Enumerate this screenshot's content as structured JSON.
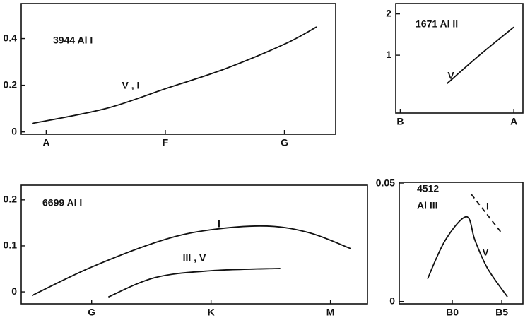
{
  "chart_data": [
    {
      "type": "line",
      "title": [
        "3944 Al I"
      ],
      "xlim": [
        -0.21,
        2.43
      ],
      "xticks": [
        {
          "value": 0,
          "label": "A"
        },
        {
          "value": 1,
          "label": "F"
        },
        {
          "value": 2,
          "label": "G"
        }
      ],
      "ylim": [
        -0.01,
        0.55
      ],
      "yticks": [
        0,
        0.2,
        0.4
      ],
      "series": [
        {
          "name": "V , I",
          "color": "#111111",
          "linestyle": "solid",
          "x": [
            -0.12,
            0.5,
            1,
            1.5,
            2,
            2.27
          ],
          "values": [
            0.036,
            0.1,
            0.185,
            0.27,
            0.376,
            0.45
          ]
        }
      ]
    },
    {
      "type": "line",
      "title": [
        "1671 Al II"
      ],
      "xlim": [
        -0.04,
        1.08
      ],
      "xticks": [
        {
          "value": 0,
          "label": "B"
        },
        {
          "value": 1,
          "label": "A"
        }
      ],
      "ylim": [
        -0.4,
        2.25
      ],
      "yticks": [
        1,
        2
      ],
      "series": [
        {
          "name": "V",
          "color": "#111111",
          "linestyle": "solid",
          "x": [
            0.41,
            0.71,
            1.0
          ],
          "values": [
            0.31,
            1.03,
            1.68
          ]
        }
      ]
    },
    {
      "type": "line",
      "title": [
        "6699 Al I"
      ],
      "xlim": [
        -0.59,
        2.31
      ],
      "xticks": [
        {
          "value": 0,
          "label": "G"
        },
        {
          "value": 1,
          "label": "K"
        },
        {
          "value": 2,
          "label": "M"
        }
      ],
      "ylim": [
        -0.026,
        0.232
      ],
      "yticks": [
        0,
        0.1,
        0.2
      ],
      "series": [
        {
          "name": "I",
          "color": "#111111",
          "linestyle": "solid",
          "x": [
            -0.5,
            0,
            0.59,
            1,
            1.47,
            1.83,
            2.17
          ],
          "values": [
            -0.008,
            0.054,
            0.112,
            0.135,
            0.143,
            0.128,
            0.094
          ]
        },
        {
          "name": "III , V",
          "color": "#111111",
          "linestyle": "solid",
          "x": [
            0.14,
            0.53,
            1,
            1.58
          ],
          "values": [
            -0.011,
            0.031,
            0.046,
            0.051
          ]
        }
      ]
    },
    {
      "type": "line",
      "title": [
        "4512",
        "Al III"
      ],
      "xlim": [
        -5.36,
        7.14
      ],
      "xticks": [
        {
          "value": 0,
          "label": "B0"
        },
        {
          "value": 5,
          "label": "B5"
        }
      ],
      "ylim": [
        -0.001,
        0.0506
      ],
      "yticks": [
        0,
        0.05
      ],
      "series": [
        {
          "name": "V",
          "color": "#111111",
          "linestyle": "solid",
          "x": [
            -2.5,
            -0.71,
            1.43,
            2.29,
            3.57,
            5.57
          ],
          "values": [
            0.0096,
            0.026,
            0.036,
            0.026,
            0.014,
            0.002
          ]
        },
        {
          "name": "I",
          "color": "#111111",
          "linestyle": "dashed",
          "x": [
            1.93,
            5
          ],
          "values": [
            0.0455,
            0.029
          ]
        }
      ]
    }
  ]
}
